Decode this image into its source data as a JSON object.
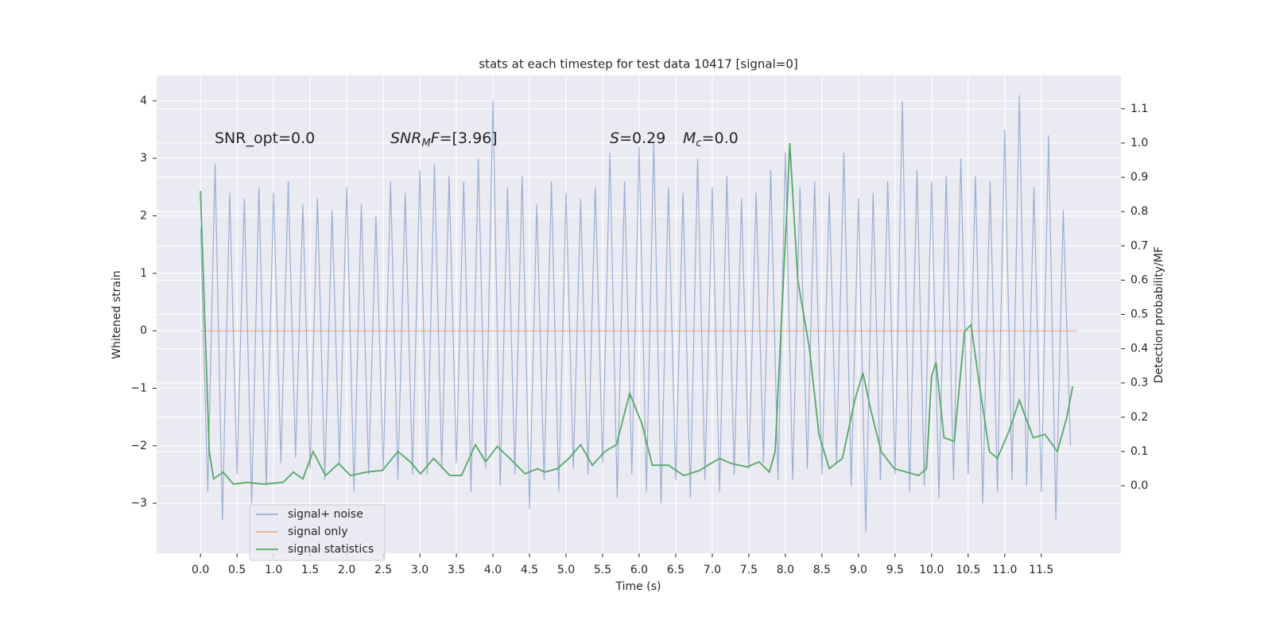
{
  "chart_data": {
    "type": "line",
    "title": "stats at each timestep for test data 10417 [signal=0]",
    "xlabel": "Time (s)",
    "ylabel": "Whitened strain",
    "y2label": "Detection probability/MF",
    "annotations": [
      {
        "parts": [
          "SNR_opt=0.0"
        ]
      },
      {
        "parts": [
          "SNR",
          "M",
          "F",
          "=[3.96]"
        ]
      },
      {
        "parts": [
          "S",
          "=0.29"
        ]
      },
      {
        "parts": [
          "M",
          "c",
          "=0.0"
        ]
      }
    ],
    "xlim": [
      -0.6,
      12.59
    ],
    "ylim": [
      -3.87,
      4.44
    ],
    "y2lim": [
      -0.197,
      1.197
    ],
    "xticks": [
      {
        "value": 0,
        "label": "0.0"
      },
      {
        "value": 0.5,
        "label": "0.5"
      },
      {
        "value": 1,
        "label": "1.0"
      },
      {
        "value": 1.5,
        "label": "1.5"
      },
      {
        "value": 2,
        "label": "2.0"
      },
      {
        "value": 2.5,
        "label": "2.5"
      },
      {
        "value": 3,
        "label": "3.0"
      },
      {
        "value": 3.5,
        "label": "3.5"
      },
      {
        "value": 4,
        "label": "4.0"
      },
      {
        "value": 4.5,
        "label": "4.5"
      },
      {
        "value": 5,
        "label": "5.0"
      },
      {
        "value": 5.5,
        "label": "5.5"
      },
      {
        "value": 6,
        "label": "6.0"
      },
      {
        "value": 6.5,
        "label": "6.5"
      },
      {
        "value": 7,
        "label": "7.0"
      },
      {
        "value": 7.5,
        "label": "7.5"
      },
      {
        "value": 8,
        "label": "8.0"
      },
      {
        "value": 8.5,
        "label": "8.5"
      },
      {
        "value": 9,
        "label": "9.0"
      },
      {
        "value": 9.5,
        "label": "9.5"
      },
      {
        "value": 10,
        "label": "10.0"
      },
      {
        "value": 10.5,
        "label": "10.5"
      },
      {
        "value": 11,
        "label": "11.0"
      },
      {
        "value": 11.5,
        "label": "11.5"
      }
    ],
    "yticks": [
      {
        "value": -3,
        "label": "−3"
      },
      {
        "value": -2,
        "label": "−2"
      },
      {
        "value": -1,
        "label": "−1"
      },
      0,
      1,
      2,
      3,
      4
    ],
    "y2ticks": [
      {
        "value": 0,
        "label": "0.0"
      },
      {
        "value": 0.1,
        "label": "0.1"
      },
      {
        "value": 0.2,
        "label": "0.2"
      },
      {
        "value": 0.3,
        "label": "0.3"
      },
      {
        "value": 0.4,
        "label": "0.4"
      },
      {
        "value": 0.5,
        "label": "0.5"
      },
      {
        "value": 0.6,
        "label": "0.6"
      },
      {
        "value": 0.7,
        "label": "0.7"
      },
      {
        "value": 0.8,
        "label": "0.8"
      },
      {
        "value": 0.9,
        "label": "0.9"
      },
      {
        "value": 1.0,
        "label": "1.0"
      },
      {
        "value": 1.1,
        "label": "1.1"
      }
    ],
    "grid": true,
    "legend": "lower left",
    "series": [
      {
        "name": "signal+ noise",
        "color": "#4c72b0",
        "alpha": 0.5,
        "x": [
          0,
          0.1,
          0.2,
          0.3,
          0.4,
          0.5,
          0.6,
          0.7,
          0.8,
          0.9,
          1.0,
          1.1,
          1.2,
          1.3,
          1.4,
          1.5,
          1.6,
          1.7,
          1.8,
          1.9,
          2.0,
          2.1,
          2.2,
          2.3,
          2.4,
          2.5,
          2.6,
          2.7,
          2.8,
          2.9,
          3.0,
          3.1,
          3.2,
          3.3,
          3.4,
          3.5,
          3.6,
          3.7,
          3.8,
          3.9,
          4.0,
          4.1,
          4.2,
          4.3,
          4.4,
          4.5,
          4.6,
          4.7,
          4.8,
          4.9,
          5.0,
          5.1,
          5.2,
          5.3,
          5.4,
          5.5,
          5.6,
          5.7,
          5.8,
          5.9,
          6.0,
          6.1,
          6.2,
          6.3,
          6.4,
          6.5,
          6.6,
          6.7,
          6.8,
          6.9,
          7.0,
          7.1,
          7.2,
          7.3,
          7.4,
          7.5,
          7.6,
          7.7,
          7.8,
          7.9,
          8.0,
          8.1,
          8.2,
          8.3,
          8.4,
          8.5,
          8.6,
          8.7,
          8.8,
          8.9,
          9.0,
          9.1,
          9.2,
          9.3,
          9.4,
          9.5,
          9.6,
          9.7,
          9.8,
          9.9,
          10.0,
          10.1,
          10.2,
          10.3,
          10.4,
          10.5,
          10.6,
          10.7,
          10.8,
          10.9,
          11.0,
          11.1,
          11.2,
          11.3,
          11.4,
          11.5,
          11.6,
          11.7,
          11.8,
          11.9
        ],
        "values": [
          1.8,
          -2.8,
          2.9,
          -3.3,
          2.4,
          -2.5,
          2.3,
          -3.0,
          2.5,
          -2.7,
          2.4,
          -2.3,
          2.6,
          -2.2,
          2.2,
          -2.4,
          2.3,
          -2.6,
          2.1,
          -2.3,
          2.5,
          -2.8,
          2.2,
          -2.5,
          2.0,
          -2.4,
          2.6,
          -2.6,
          2.4,
          -2.5,
          2.8,
          -2.5,
          2.9,
          -2.4,
          2.7,
          -2.3,
          2.6,
          -2.8,
          3.0,
          -2.4,
          4.0,
          -2.7,
          2.5,
          -2.5,
          2.7,
          -3.1,
          2.2,
          -2.6,
          2.6,
          -2.8,
          2.4,
          -2.4,
          2.3,
          -2.5,
          2.5,
          -2.3,
          3.1,
          -2.9,
          2.6,
          -2.5,
          3.2,
          -2.8,
          3.3,
          -3.0,
          2.5,
          -2.6,
          2.4,
          -2.9,
          3.0,
          -2.6,
          2.5,
          -2.8,
          2.7,
          -2.5,
          2.3,
          -2.4,
          2.4,
          -2.3,
          2.8,
          -2.6,
          3.1,
          -2.6,
          2.5,
          -2.4,
          2.6,
          -2.5,
          2.4,
          -2.3,
          3.1,
          -2.7,
          2.3,
          -3.5,
          2.4,
          -2.6,
          2.6,
          -2.5,
          4.0,
          -2.8,
          2.8,
          -2.7,
          2.6,
          -2.9,
          2.7,
          -2.6,
          3.0,
          -2.5,
          2.7,
          -3.0,
          2.6,
          -2.8,
          3.5,
          -2.6,
          4.1,
          -2.7,
          2.5,
          -2.8,
          3.4,
          -3.3,
          2.1,
          -2.0
        ]
      },
      {
        "name": "signal only",
        "color": "#dd8452",
        "alpha": 0.6,
        "x": [
          0,
          11.99
        ],
        "values": [
          0,
          0
        ]
      },
      {
        "name": "signal statistics",
        "color": "#55a868",
        "alpha": 1,
        "axis": "y2",
        "x": [
          0,
          0.12,
          0.18,
          0.31,
          0.45,
          0.64,
          0.86,
          1.13,
          1.27,
          1.4,
          1.54,
          1.71,
          1.89,
          2.05,
          2.27,
          2.49,
          2.7,
          2.87,
          3.01,
          3.19,
          3.41,
          3.57,
          3.76,
          3.9,
          4.06,
          4.23,
          4.44,
          4.61,
          4.71,
          4.88,
          5.04,
          5.2,
          5.36,
          5.53,
          5.69,
          5.87,
          6.04,
          6.18,
          6.4,
          6.61,
          6.83,
          6.94,
          7.1,
          7.26,
          7.48,
          7.64,
          7.78,
          7.86,
          8.03,
          8.06,
          8.17,
          8.33,
          8.46,
          8.6,
          8.78,
          8.95,
          9.06,
          9.17,
          9.31,
          9.49,
          9.66,
          9.82,
          9.93,
          10.0,
          10.06,
          10.17,
          10.31,
          10.45,
          10.54,
          10.65,
          10.79,
          10.9,
          11.06,
          11.2,
          11.39,
          11.55,
          11.72,
          11.85,
          11.93
        ],
        "values": [
          0.86,
          0.1,
          0.02,
          0.04,
          0.005,
          0.01,
          0.005,
          0.01,
          0.04,
          0.02,
          0.1,
          0.03,
          0.065,
          0.03,
          0.04,
          0.045,
          0.1,
          0.07,
          0.035,
          0.08,
          0.03,
          0.03,
          0.12,
          0.07,
          0.115,
          0.08,
          0.035,
          0.05,
          0.04,
          0.05,
          0.08,
          0.12,
          0.06,
          0.1,
          0.12,
          0.27,
          0.18,
          0.06,
          0.06,
          0.03,
          0.045,
          0.06,
          0.08,
          0.065,
          0.055,
          0.07,
          0.04,
          0.1,
          0.85,
          1.0,
          0.6,
          0.4,
          0.15,
          0.05,
          0.08,
          0.25,
          0.33,
          0.22,
          0.1,
          0.05,
          0.04,
          0.03,
          0.05,
          0.32,
          0.36,
          0.14,
          0.13,
          0.45,
          0.47,
          0.3,
          0.1,
          0.08,
          0.16,
          0.25,
          0.14,
          0.15,
          0.1,
          0.2,
          0.29
        ]
      }
    ]
  }
}
